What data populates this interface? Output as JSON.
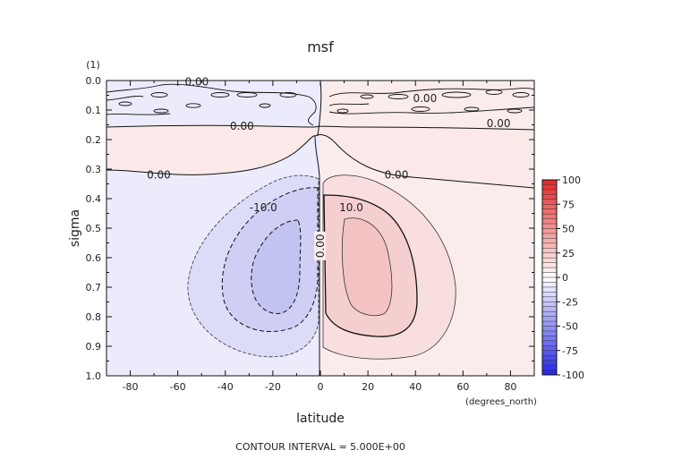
{
  "chart_data": {
    "type": "heatmap",
    "title": "msf",
    "xlabel": "latitude",
    "ylabel": "sigma",
    "y_unit_label": "(1)",
    "x_unit_label": "(degrees_north)",
    "xlim": [
      -90,
      90
    ],
    "ylim": [
      1.0,
      0.0
    ],
    "x_ticks": [
      "-80",
      "-60",
      "-40",
      "-20",
      "0",
      "20",
      "40",
      "60",
      "80"
    ],
    "y_ticks": [
      "0.0",
      "0.1",
      "0.2",
      "0.3",
      "0.4",
      "0.5",
      "0.6",
      "0.7",
      "0.8",
      "0.9",
      "1.0"
    ],
    "footer": "CONTOUR INTERVAL = 5.000E+00",
    "colorbar": {
      "min": -100,
      "max": 100,
      "tick_labels": [
        "100",
        "75",
        "50",
        "25",
        "0",
        "-25",
        "-50",
        "-75",
        "-100"
      ],
      "neg_color": "#2626e6",
      "pos_color": "#e62626"
    },
    "contour_labels": [
      {
        "text": "0.00",
        "lat": -52,
        "sigma": 0.005
      },
      {
        "text": "0.00",
        "lat": 44,
        "sigma": 0.06
      },
      {
        "text": "0.00",
        "lat": -33,
        "sigma": 0.155
      },
      {
        "text": "0.00",
        "lat": 75,
        "sigma": 0.145
      },
      {
        "text": "0.00",
        "lat": -68,
        "sigma": 0.32
      },
      {
        "text": "0.00",
        "lat": 32,
        "sigma": 0.32
      },
      {
        "text": "0.00",
        "lat": 0,
        "sigma": 0.56
      },
      {
        "text": "-10.0",
        "lat": -24,
        "sigma": 0.43
      },
      {
        "text": "10.0",
        "lat": 13,
        "sigma": 0.43
      }
    ],
    "cells": [
      {
        "lat_min": -55,
        "lat_max": -2,
        "sigma_min": 0.34,
        "sigma_max": 0.94,
        "value": -5
      },
      {
        "lat_min": -45,
        "lat_max": -8,
        "sigma_min": 0.42,
        "sigma_max": 0.86,
        "value": -10
      },
      {
        "lat_min": -29,
        "lat_max": -13,
        "sigma_min": 0.5,
        "sigma_max": 0.79,
        "value": -15
      },
      {
        "lat_min": 3,
        "lat_max": 56,
        "sigma_min": 0.34,
        "sigma_max": 0.94,
        "value": 5
      },
      {
        "lat_min": 7,
        "lat_max": 40,
        "sigma_min": 0.42,
        "sigma_max": 0.88,
        "value": 10
      },
      {
        "lat_min": 11,
        "lat_max": 28,
        "sigma_min": 0.5,
        "sigma_max": 0.8,
        "value": 15
      }
    ]
  }
}
